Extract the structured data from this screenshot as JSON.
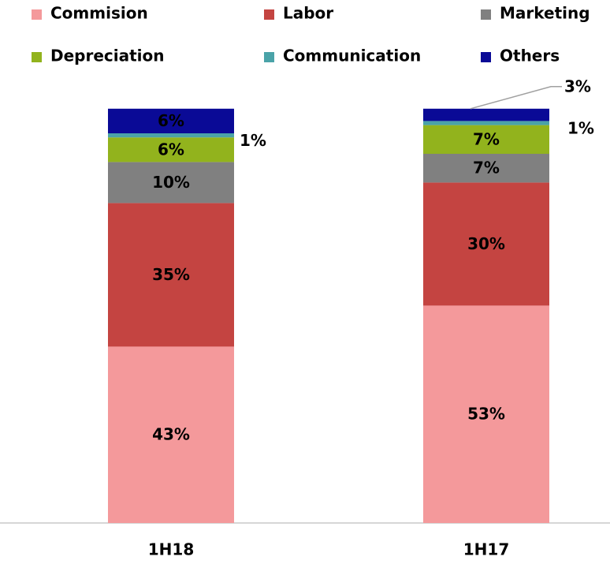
{
  "chart_data": {
    "type": "stacked_bar",
    "categories": [
      "1H18",
      "1H17"
    ],
    "series": [
      {
        "name": "Commision",
        "color": "#f4999b",
        "values": [
          43,
          53
        ],
        "value_labels": [
          "43%",
          "53%"
        ]
      },
      {
        "name": "Labor",
        "color": "#c44441",
        "values": [
          35,
          30
        ],
        "value_labels": [
          "35%",
          "30%"
        ]
      },
      {
        "name": "Marketing",
        "color": "#808080",
        "values": [
          10,
          7
        ],
        "value_labels": [
          "10%",
          "7%"
        ]
      },
      {
        "name": "Depreciation",
        "color": "#92b31d",
        "values": [
          6,
          7
        ],
        "value_labels": [
          "6%",
          "7%"
        ]
      },
      {
        "name": "Communication",
        "color": "#4aa3a8",
        "values": [
          1,
          1
        ],
        "value_labels": [
          "1%",
          "1%"
        ]
      },
      {
        "name": "Others",
        "color": "#0a0a96",
        "values": [
          6,
          3
        ],
        "value_labels": [
          "6%",
          "3%"
        ]
      }
    ]
  }
}
